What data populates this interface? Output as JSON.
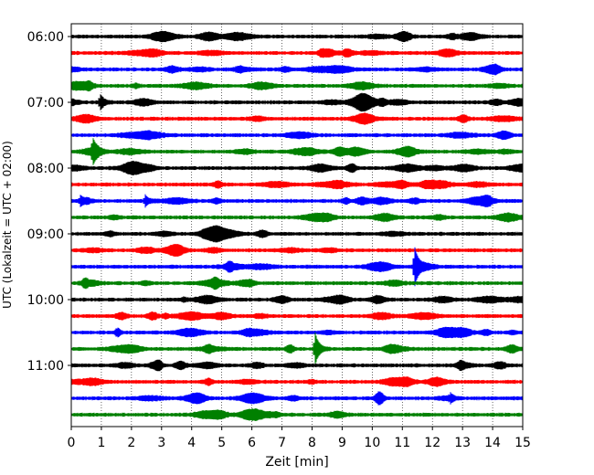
{
  "chart_data": {
    "type": "line",
    "title": "",
    "xlabel": "Zeit  [min]",
    "ylabel": "UTC (Lokalzeit = UTC + 02:00)",
    "xlim": [
      0,
      15
    ],
    "x_ticks": [
      "0",
      "1",
      "2",
      "3",
      "4",
      "5",
      "6",
      "7",
      "8",
      "9",
      "10",
      "11",
      "12",
      "13",
      "14",
      "15"
    ],
    "y_tick_labels": [
      "06:00",
      "07:00",
      "08:00",
      "09:00",
      "10:00",
      "11:00"
    ],
    "grid": "vertical dotted lines at each minute",
    "trace_color_cycle": [
      "#000000",
      "#ff0000",
      "#0000ff",
      "#008000"
    ],
    "trace_count": 24,
    "first_trace_start": "06:00",
    "trace_interval_min": 15,
    "events": [
      {
        "trace": 4,
        "x_min": 0.95,
        "amplitude": 9
      },
      {
        "trace": 7,
        "x_min": 0.7,
        "amplitude": 13
      },
      {
        "trace": 10,
        "x_min": 0.3,
        "amplitude": 5
      },
      {
        "trace": 10,
        "x_min": 2.45,
        "amplitude": 6
      },
      {
        "trace": 14,
        "x_min": 11.4,
        "amplitude": 22
      },
      {
        "trace": 19,
        "x_min": 8.1,
        "amplitude": 17
      },
      {
        "trace": 22,
        "x_min": 12.6,
        "amplitude": 4
      }
    ]
  }
}
